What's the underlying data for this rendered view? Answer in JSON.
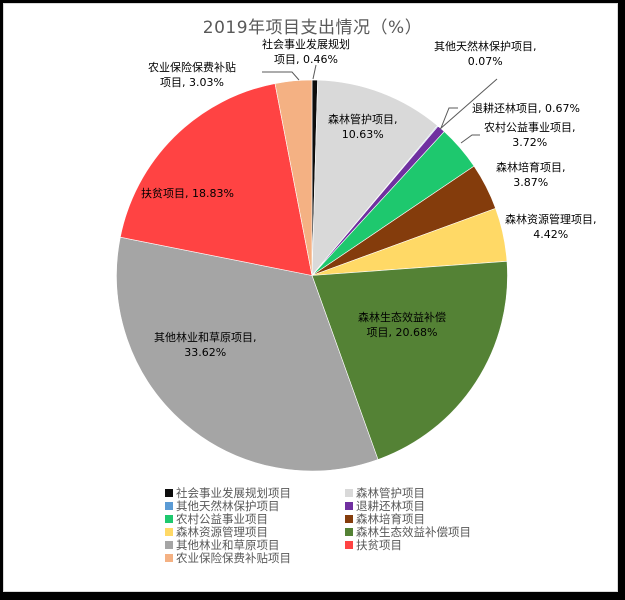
{
  "chart_data": {
    "type": "pie",
    "title": "2019年项目支出情况（%）",
    "start_angle": "12 o'clock, clockwise",
    "legend_position": "bottom",
    "slices": [
      {
        "name": "社会事业发展规划项目",
        "value": 0.46,
        "color": "#0d0d0d",
        "label": "社会事业发展规划\n项目, 0.46%"
      },
      {
        "name": "森林管护项目",
        "value": 10.63,
        "color": "#d9d9d9",
        "label": "森林管护项目,\n10.63%"
      },
      {
        "name": "其他天然林保护项目",
        "value": 0.07,
        "color": "#5b9bd5",
        "label": "其他天然林保护项目,\n0.07%"
      },
      {
        "name": "退耕还林项目",
        "value": 0.67,
        "color": "#7030a0",
        "label": "退耕还林项目, 0.67%"
      },
      {
        "name": "农村公益事业项目",
        "value": 3.72,
        "color": "#1ec86e",
        "label": "农村公益事业项目,\n3.72%"
      },
      {
        "name": "森林培育项目",
        "value": 3.87,
        "color": "#843c0c",
        "label": "森林培育项目,\n3.87%"
      },
      {
        "name": "森林资源管理项目",
        "value": 4.42,
        "color": "#ffd966",
        "label": "森林资源管理项目,\n4.42%"
      },
      {
        "name": "森林生态效益补偿项目",
        "value": 20.68,
        "color": "#548235",
        "label": "森林生态效益补偿\n项目, 20.68%"
      },
      {
        "name": "其他林业和草原项目",
        "value": 33.62,
        "color": "#a5a5a5",
        "label": "其他林业和草原项目,\n33.62%"
      },
      {
        "name": "扶贫项目",
        "value": 18.83,
        "color": "#ff4343",
        "label": "扶贫项目, 18.83%"
      },
      {
        "name": "农业保险保费补贴项目",
        "value": 3.03,
        "color": "#f4b183",
        "label": "农业保险保费补贴\n项目, 3.03%"
      }
    ]
  },
  "labels": {
    "l0a": "社会事业发展规划",
    "l0b": "项目, 0.46%",
    "l1a": "森林管护项目,",
    "l1b": "10.63%",
    "l2a": "其他天然林保护项目,",
    "l2b": "0.07%",
    "l3a": "退耕还林项目, 0.67%",
    "l4a": "农村公益事业项目,",
    "l4b": "3.72%",
    "l5a": "森林培育项目,",
    "l5b": "3.87%",
    "l6a": "森林资源管理项目,",
    "l6b": "4.42%",
    "l7a": "森林生态效益补偿",
    "l7b": "项目, 20.68%",
    "l8a": "其他林业和草原项目,",
    "l8b": "33.62%",
    "l9a": "扶贫项目, 18.83%",
    "l10a": "农业保险保费补贴",
    "l10b": "项目, 3.03%"
  },
  "legend": [
    {
      "label": "社会事业发展规划项目",
      "color": "#0d0d0d"
    },
    {
      "label": "森林管护项目",
      "color": "#d9d9d9"
    },
    {
      "label": "其他天然林保护项目",
      "color": "#5b9bd5"
    },
    {
      "label": "退耕还林项目",
      "color": "#7030a0"
    },
    {
      "label": "农村公益事业项目",
      "color": "#1ec86e"
    },
    {
      "label": "森林培育项目",
      "color": "#843c0c"
    },
    {
      "label": "森林资源管理项目",
      "color": "#ffd966"
    },
    {
      "label": "森林生态效益补偿项目",
      "color": "#548235"
    },
    {
      "label": "其他林业和草原项目",
      "color": "#a5a5a5"
    },
    {
      "label": "扶贫项目",
      "color": "#ff4343"
    },
    {
      "label": "农业保险保费补贴项目",
      "color": "#f4b183"
    }
  ]
}
